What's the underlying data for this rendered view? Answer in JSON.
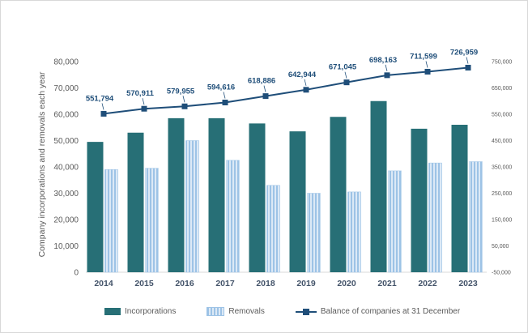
{
  "chart_data": {
    "type": "bar",
    "subtype": "grouped-bars-with-line-overlay",
    "title": "",
    "categories": [
      "2014",
      "2015",
      "2016",
      "2017",
      "2018",
      "2019",
      "2020",
      "2021",
      "2022",
      "2023"
    ],
    "series": [
      {
        "name": "Incorporations",
        "type": "bar",
        "axis": "left",
        "color": "#276F76",
        "values": [
          49500,
          53000,
          58500,
          58500,
          56500,
          53500,
          59000,
          65000,
          54500,
          56000
        ]
      },
      {
        "name": "Removals",
        "type": "bar",
        "axis": "left",
        "style": "striped",
        "stripe_colors": [
          "#9DC3E6",
          "#DCE9F6"
        ],
        "values": [
          39000,
          39500,
          50000,
          42500,
          33000,
          30000,
          30500,
          38500,
          41500,
          42000
        ]
      },
      {
        "name": "Balance of companies at 31 December",
        "type": "line",
        "axis": "right",
        "color": "#1F4E79",
        "marker": "square",
        "values": [
          551794,
          570911,
          579955,
          594616,
          618886,
          642944,
          671045,
          698163,
          711599,
          726959
        ],
        "data_labels": [
          "551,794",
          "570,911",
          "579,955",
          "594,616",
          "618,886",
          "642,944",
          "671,045",
          "698,163",
          "711,599",
          "726,959"
        ]
      }
    ],
    "left_axis": {
      "title": "Company incorporations and removals each year",
      "min": 0,
      "max": 80000,
      "step": 10000,
      "tick_labels": [
        "0",
        "10,000",
        "20,000",
        "30,000",
        "40,000",
        "50,000",
        "60,000",
        "70,000",
        "80,000"
      ]
    },
    "right_axis": {
      "min": -50000,
      "max": 750000,
      "step": 100000,
      "tick_labels": [
        "-50,000",
        "50,000",
        "150,000",
        "250,000",
        "350,000",
        "450,000",
        "550,000",
        "650,000",
        "750,000"
      ]
    },
    "gridlines": false,
    "legend_position": "bottom"
  },
  "legend": {
    "items": [
      {
        "label": "Incorporations"
      },
      {
        "label": "Removals"
      },
      {
        "label": "Balance of companies at 31 December"
      }
    ]
  },
  "colors": {
    "incorporations_bar": "#276F76",
    "removals_stripe_dark": "#9DC3E6",
    "removals_stripe_light": "#DCE9F6",
    "balance_line": "#1F4E79",
    "axis_text": "#595959",
    "category_text": "#44546A",
    "axis_line": "#D9D9D9"
  }
}
